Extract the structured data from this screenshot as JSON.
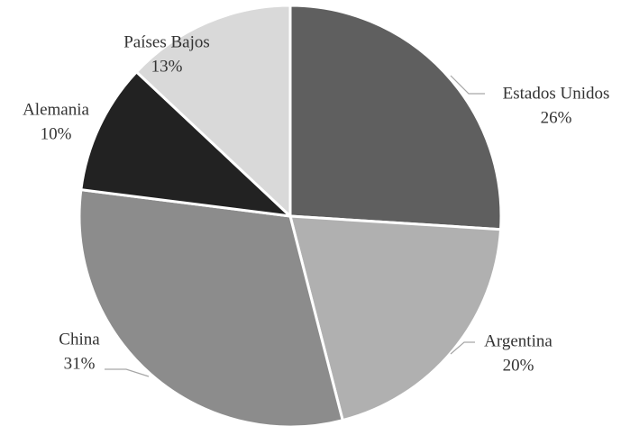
{
  "chart_data": {
    "type": "pie",
    "categories": [
      "Estados Unidos",
      "Argentina",
      "China",
      "Alemania",
      "Países Bajos"
    ],
    "values": [
      26,
      20,
      31,
      10,
      13
    ],
    "value_labels": [
      "26%",
      "20%",
      "31%",
      "10%",
      "13%"
    ],
    "colors": [
      "#5f5f5f",
      "#b0b0b0",
      "#8c8c8c",
      "#222222",
      "#d9d9d9"
    ]
  }
}
